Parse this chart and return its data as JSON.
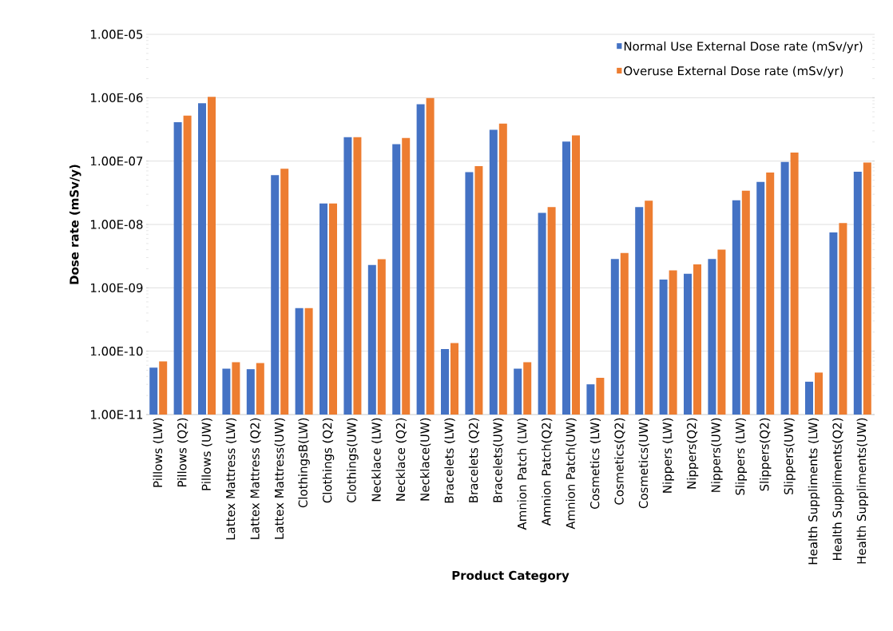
{
  "chart_data": {
    "type": "bar",
    "xlabel": "Product Category",
    "ylabel": "Dose rate (mSv/y)",
    "categories": [
      "Pillows (LW)",
      "Pillows (Q2)",
      "Pillows (UW)",
      "Lattex Mattress (LW)",
      "Lattex Mattress (Q2)",
      "Lattex Mattress(UW)",
      "ClothingsB(LW)",
      "Clothings (Q2)",
      "Clothings(UW)",
      "Necklace (LW)",
      "Necklace (Q2)",
      "Necklace(UW)",
      "Bracelets (LW)",
      "Bracelets (Q2)",
      "Bracelets(UW)",
      "Amnion Patch (LW)",
      "Amnion Patch(Q2)",
      "Amnion Patch(UW)",
      "Cosmetics (LW)",
      "Cosmetics(Q2)",
      "Cosmetics(UW)",
      "Nippers (LW)",
      "Nippers(Q2)",
      "Nippers(UW)",
      "Slippers (LW)",
      "Slippers(Q2)",
      "Slippers(UW)",
      "Health Suppliments (LW)",
      "Health Suppliments(Q2)",
      "Health Suppliments(UW)"
    ],
    "series": [
      {
        "name": "Normal Use External Dose rate (mSv/yr)",
        "color": "#4472c4",
        "values": [
          5.5e-11,
          4.1e-07,
          8.2e-07,
          5.3e-11,
          5.2e-11,
          6e-08,
          4.8e-10,
          2.15e-08,
          2.38e-07,
          2.29e-09,
          1.85e-07,
          7.9e-07,
          1.08e-10,
          6.7e-08,
          3.12e-07,
          5.3e-11,
          1.52e-08,
          2.03e-07,
          3e-11,
          2.86e-09,
          1.88e-08,
          1.35e-09,
          1.67e-09,
          2.86e-09,
          2.4e-08,
          4.7e-08,
          9.7e-08,
          3.3e-11,
          7.5e-09,
          6.8e-08
        ]
      },
      {
        "name": "Overuse External Dose rate (mSv/yr)",
        "color": "#ed7d31",
        "values": [
          6.9e-11,
          5.2e-07,
          1.03e-06,
          6.7e-11,
          6.5e-11,
          7.6e-08,
          4.8e-10,
          2.15e-08,
          2.38e-07,
          2.83e-09,
          2.31e-07,
          9.9e-07,
          1.34e-10,
          8.3e-08,
          3.9e-07,
          6.7e-11,
          1.88e-08,
          2.54e-07,
          3.8e-11,
          3.54e-09,
          2.38e-08,
          1.88e-09,
          2.35e-09,
          4e-09,
          3.4e-08,
          6.6e-08,
          1.36e-07,
          4.6e-11,
          1.05e-08,
          9.5e-08
        ]
      }
    ],
    "log": true,
    "ylim": [
      1e-11,
      1e-05
    ],
    "yticks": [
      {
        "value": 1e-11,
        "label": "1.00E-11"
      },
      {
        "value": 1e-10,
        "label": "1.00E-10"
      },
      {
        "value": 1e-09,
        "label": "1.00E-09"
      },
      {
        "value": 1e-08,
        "label": "1.00E-08"
      },
      {
        "value": 1e-07,
        "label": "1.00E-07"
      },
      {
        "value": 1e-06,
        "label": "1.00E-06"
      },
      {
        "value": 1e-05,
        "label": "1.00E-05"
      }
    ],
    "grid": "y",
    "legend": "top right"
  }
}
